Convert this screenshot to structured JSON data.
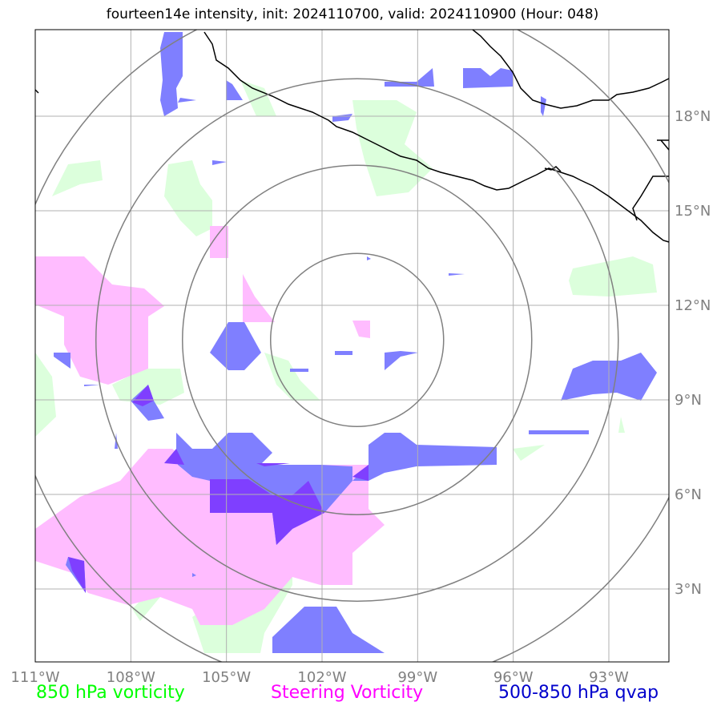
{
  "title": "fourteen14e intensity, init: 2024110700, valid: 2024110900 (Hour: 048)",
  "longitude_labels": [
    "111°W",
    "108°W",
    "105°W",
    "102°W",
    "99°W",
    "96°W",
    "93°W"
  ],
  "latitude_labels": [
    "18°N",
    "15°N",
    "12°N",
    "9°N",
    "6°N",
    "3°N"
  ],
  "legend": {
    "left": {
      "text": "850 hPa vorticity",
      "color": "#00ff00"
    },
    "middle": {
      "text": "Steering Vorticity",
      "color": "#ff00ff"
    },
    "right": {
      "text": "500-850 hPa qvap",
      "color": "#0000cc"
    }
  },
  "colors": {
    "vorticity_850": "#dcffdc",
    "steering_vorticity": "#ffbcff",
    "qvap": "#7f7fff",
    "overlap": "#7f3fff",
    "grid": "#b0b0b0",
    "range_rings": "#808080",
    "coastline": "#000000"
  },
  "map": {
    "center_lat": 10.9,
    "center_lon": -100.9,
    "range_ring_count": 4
  }
}
